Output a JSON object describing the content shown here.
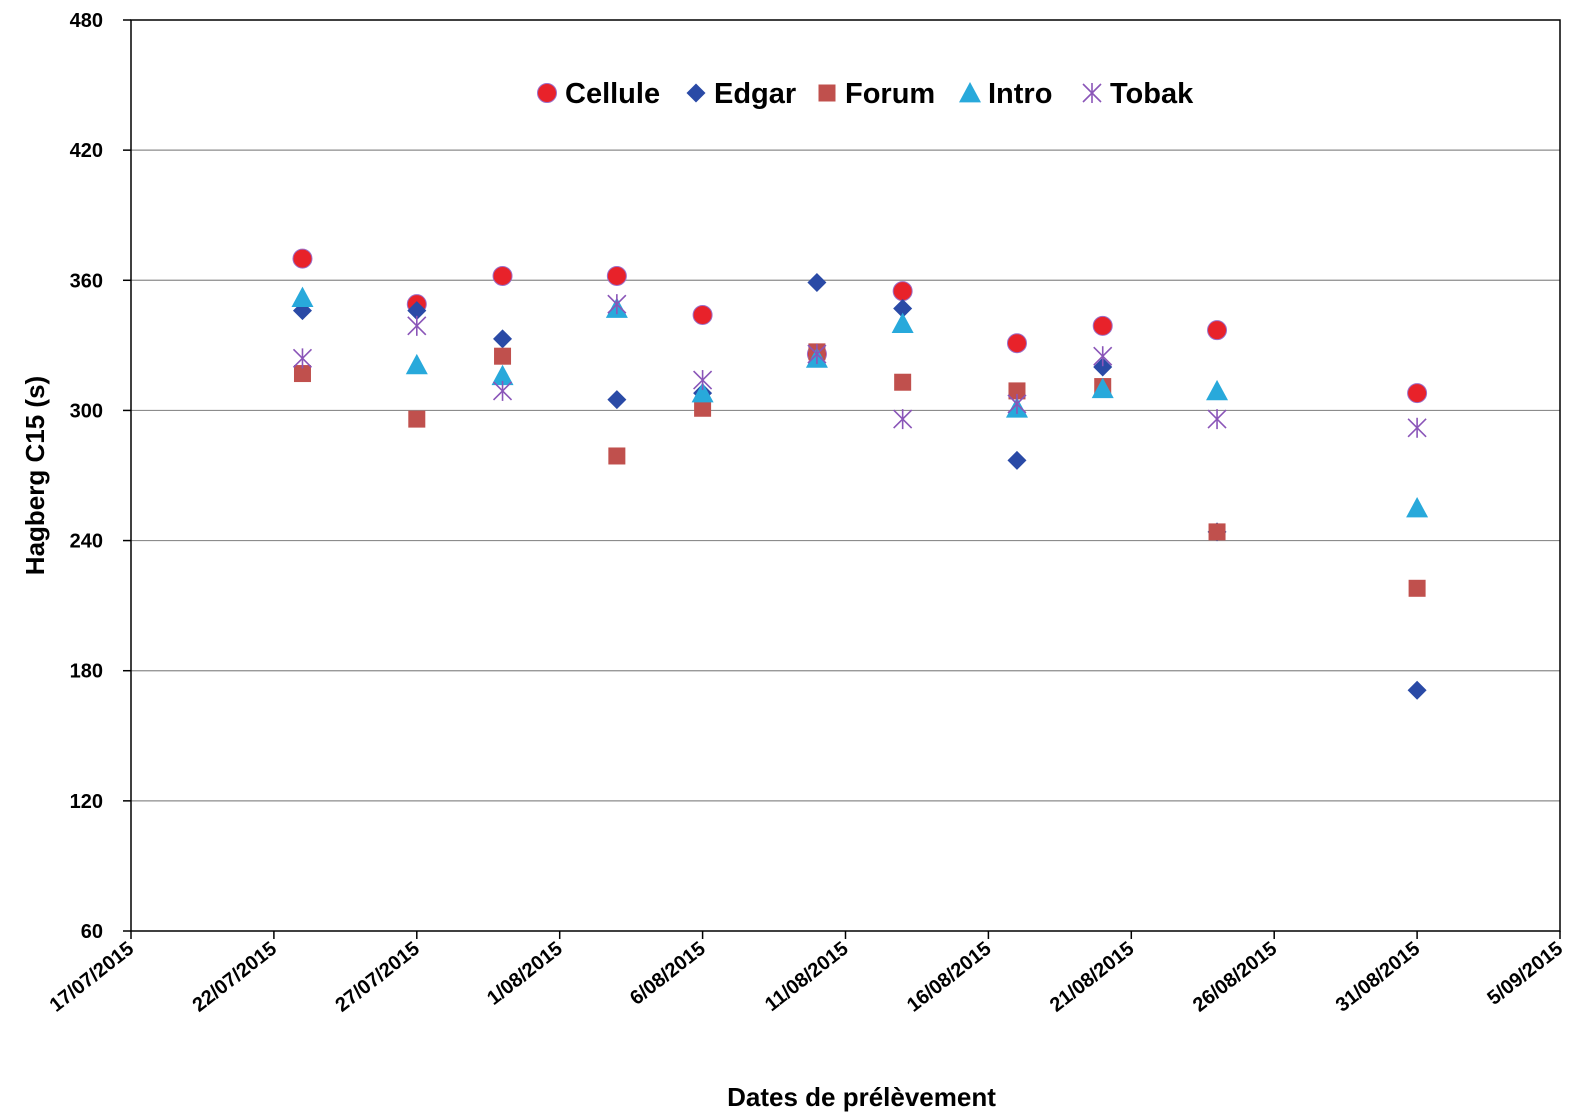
{
  "chart_data": {
    "type": "scatter",
    "title": "",
    "xlabel": "Dates de prélèvement",
    "ylabel": "Hagberg C15 (s)",
    "xlim": [
      "17/07/2015",
      "5/09/2015"
    ],
    "ylim": [
      60,
      480
    ],
    "y_ticks": [
      60,
      120,
      180,
      240,
      300,
      360,
      420,
      480
    ],
    "x_ticks": [
      "17/07/2015",
      "22/07/2015",
      "27/07/2015",
      "1/08/2015",
      "6/08/2015",
      "11/08/2015",
      "16/08/2015",
      "21/08/2015",
      "26/08/2015",
      "31/08/2015",
      "5/09/2015"
    ],
    "grid": "horizontal",
    "legend_position": "top-center",
    "series": [
      {
        "name": "Cellule",
        "marker": "circle",
        "color": "#e8222a",
        "points": [
          {
            "x": "23/07/2015",
            "y": 370
          },
          {
            "x": "27/07/2015",
            "y": 349
          },
          {
            "x": "30/07/2015",
            "y": 362
          },
          {
            "x": "3/08/2015",
            "y": 362
          },
          {
            "x": "6/08/2015",
            "y": 344
          },
          {
            "x": "10/08/2015",
            "y": 326
          },
          {
            "x": "13/08/2015",
            "y": 355
          },
          {
            "x": "17/08/2015",
            "y": 331
          },
          {
            "x": "20/08/2015",
            "y": 339
          },
          {
            "x": "24/08/2015",
            "y": 337
          },
          {
            "x": "31/08/2015",
            "y": 308
          }
        ]
      },
      {
        "name": "Edgar",
        "marker": "diamond",
        "color": "#2a4aa6",
        "points": [
          {
            "x": "23/07/2015",
            "y": 346
          },
          {
            "x": "27/07/2015",
            "y": 346
          },
          {
            "x": "30/07/2015",
            "y": 333
          },
          {
            "x": "3/08/2015",
            "y": 305
          },
          {
            "x": "6/08/2015",
            "y": 308
          },
          {
            "x": "10/08/2015",
            "y": 359
          },
          {
            "x": "13/08/2015",
            "y": 347
          },
          {
            "x": "17/08/2015",
            "y": 277
          },
          {
            "x": "20/08/2015",
            "y": 320
          },
          {
            "x": "24/08/2015",
            "y": 244
          },
          {
            "x": "31/08/2015",
            "y": 171
          }
        ]
      },
      {
        "name": "Forum",
        "marker": "square",
        "color": "#c0504d",
        "points": [
          {
            "x": "23/07/2015",
            "y": 317
          },
          {
            "x": "27/07/2015",
            "y": 296
          },
          {
            "x": "30/07/2015",
            "y": 325
          },
          {
            "x": "3/08/2015",
            "y": 279
          },
          {
            "x": "6/08/2015",
            "y": 301
          },
          {
            "x": "10/08/2015",
            "y": 327
          },
          {
            "x": "13/08/2015",
            "y": 313
          },
          {
            "x": "17/08/2015",
            "y": 309
          },
          {
            "x": "20/08/2015",
            "y": 311
          },
          {
            "x": "24/08/2015",
            "y": 244
          },
          {
            "x": "31/08/2015",
            "y": 218
          }
        ]
      },
      {
        "name": "Intro",
        "marker": "triangle",
        "color": "#28a9db",
        "points": [
          {
            "x": "23/07/2015",
            "y": 352
          },
          {
            "x": "27/07/2015",
            "y": 321
          },
          {
            "x": "30/07/2015",
            "y": 316
          },
          {
            "x": "3/08/2015",
            "y": 347
          },
          {
            "x": "6/08/2015",
            "y": 308
          },
          {
            "x": "10/08/2015",
            "y": 324
          },
          {
            "x": "13/08/2015",
            "y": 340
          },
          {
            "x": "17/08/2015",
            "y": 301
          },
          {
            "x": "20/08/2015",
            "y": 310
          },
          {
            "x": "24/08/2015",
            "y": 309
          },
          {
            "x": "31/08/2015",
            "y": 255
          }
        ]
      },
      {
        "name": "Tobak",
        "marker": "asterisk",
        "color": "#8a55b8",
        "points": [
          {
            "x": "23/07/2015",
            "y": 324
          },
          {
            "x": "27/07/2015",
            "y": 339
          },
          {
            "x": "30/07/2015",
            "y": 309
          },
          {
            "x": "3/08/2015",
            "y": 349
          },
          {
            "x": "6/08/2015",
            "y": 314
          },
          {
            "x": "10/08/2015",
            "y": 326
          },
          {
            "x": "13/08/2015",
            "y": 296
          },
          {
            "x": "17/08/2015",
            "y": 303
          },
          {
            "x": "20/08/2015",
            "y": 325
          },
          {
            "x": "24/08/2015",
            "y": 296
          },
          {
            "x": "31/08/2015",
            "y": 292
          }
        ]
      }
    ]
  }
}
